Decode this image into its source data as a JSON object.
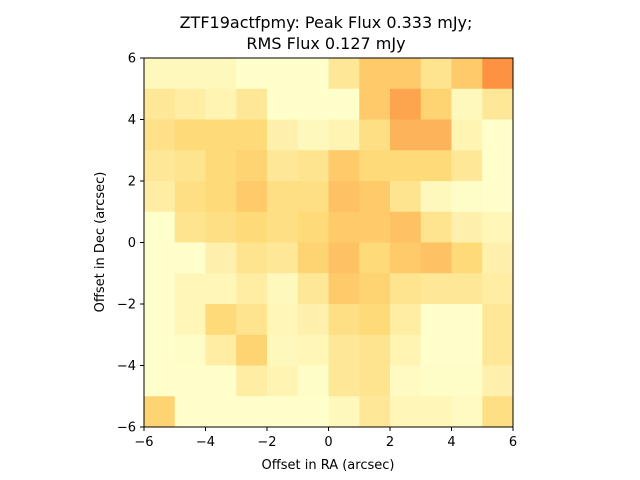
{
  "chart_data": {
    "type": "heatmap",
    "title_line1": "ZTF19actfpmy: Peak Flux 0.333 mJy;",
    "title_line2": "RMS Flux 0.127 mJy",
    "xlabel": "Offset in RA (arcsec)",
    "ylabel": "Offset in Dec (arcsec)",
    "xlim": [
      -6,
      6
    ],
    "ylim": [
      -6,
      6
    ],
    "xticks": [
      -6,
      -4,
      -2,
      0,
      2,
      4,
      6
    ],
    "yticks": [
      -6,
      -4,
      -2,
      0,
      2,
      4,
      6
    ],
    "xtick_labels": [
      "−6",
      "−4",
      "−2",
      "0",
      "2",
      "4",
      "6"
    ],
    "ytick_labels": [
      "−6",
      "−4",
      "−2",
      "0",
      "2",
      "4",
      "6"
    ],
    "colormap": {
      "low": "#ffffcc",
      "mid": "#fed976",
      "high": "#fd8d3c"
    },
    "value_range": [
      0.0,
      0.333
    ],
    "grid_note": "rows listed from top (Dec +6) to bottom (Dec -6), columns from RA -6 to +6",
    "values": [
      [
        0.03,
        0.03,
        0.03,
        0.0,
        0.0,
        0.0,
        0.1,
        0.2,
        0.2,
        0.12,
        0.2,
        0.32
      ],
      [
        0.1,
        0.08,
        0.05,
        0.1,
        0.0,
        0.0,
        0.0,
        0.2,
        0.28,
        0.18,
        0.03,
        0.1
      ],
      [
        0.13,
        0.16,
        0.16,
        0.16,
        0.06,
        0.03,
        0.05,
        0.14,
        0.25,
        0.25,
        0.05,
        0.0
      ],
      [
        0.1,
        0.12,
        0.16,
        0.18,
        0.1,
        0.12,
        0.2,
        0.16,
        0.16,
        0.16,
        0.1,
        0.0
      ],
      [
        0.08,
        0.14,
        0.16,
        0.2,
        0.14,
        0.14,
        0.22,
        0.2,
        0.12,
        0.03,
        0.01,
        0.0
      ],
      [
        0.0,
        0.12,
        0.14,
        0.16,
        0.14,
        0.16,
        0.2,
        0.2,
        0.22,
        0.12,
        0.06,
        0.04
      ],
      [
        0.0,
        0.0,
        0.06,
        0.12,
        0.1,
        0.18,
        0.22,
        0.16,
        0.2,
        0.22,
        0.16,
        0.06
      ],
      [
        0.0,
        0.04,
        0.04,
        0.08,
        0.03,
        0.1,
        0.2,
        0.18,
        0.12,
        0.1,
        0.1,
        0.08
      ],
      [
        0.0,
        0.04,
        0.16,
        0.12,
        0.04,
        0.06,
        0.14,
        0.16,
        0.08,
        0.0,
        0.0,
        0.1
      ],
      [
        0.0,
        0.01,
        0.08,
        0.18,
        0.03,
        0.04,
        0.1,
        0.12,
        0.05,
        0.0,
        0.0,
        0.1
      ],
      [
        0.0,
        0.0,
        0.0,
        0.08,
        0.05,
        0.01,
        0.1,
        0.12,
        0.02,
        0.01,
        0.01,
        0.06
      ],
      [
        0.18,
        0.0,
        0.0,
        0.0,
        0.0,
        0.0,
        0.03,
        0.1,
        0.04,
        0.04,
        0.02,
        0.14
      ]
    ]
  }
}
